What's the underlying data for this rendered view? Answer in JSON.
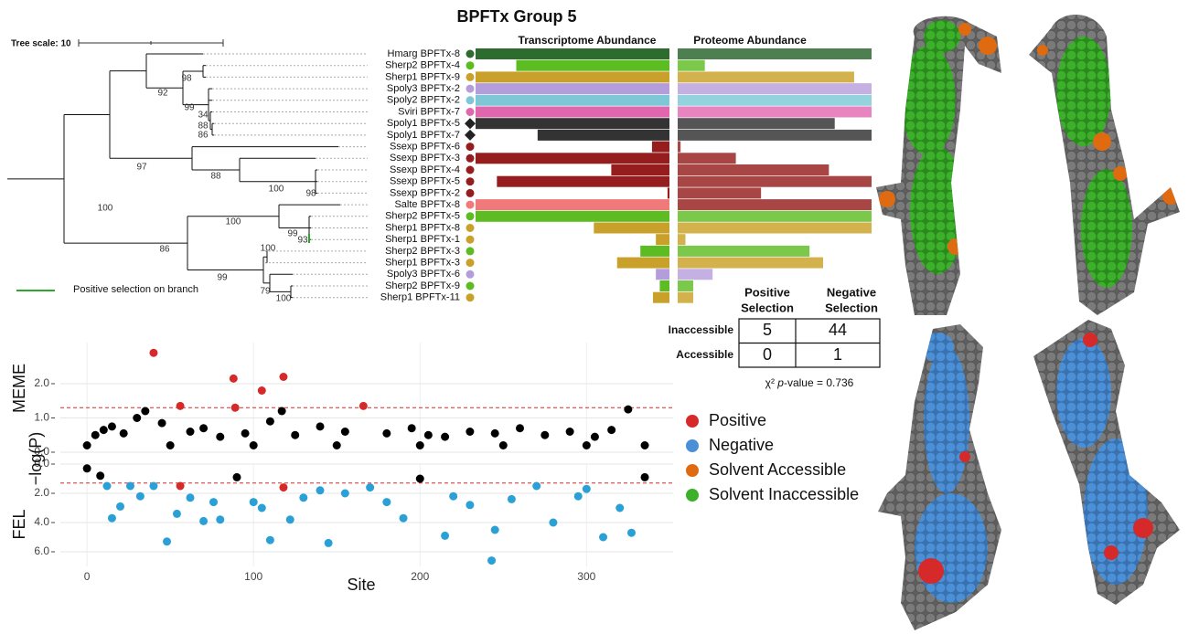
{
  "title": "BPFTx Group 5",
  "tree": {
    "scale_label": "Tree scale: 10",
    "legend": "Positive selection on branch",
    "taxa": [
      {
        "label": "Hmarg BPFTx-8",
        "color": "#2e6b2f",
        "shape": "circle"
      },
      {
        "label": "Sherp2 BPFTx-4",
        "color": "#5cbc22",
        "shape": "circle"
      },
      {
        "label": "Sherp1 BPFTx-9",
        "color": "#c8a02a",
        "shape": "circle"
      },
      {
        "label": "Spoly3 BPFTx-2",
        "color": "#b49ddb",
        "shape": "circle"
      },
      {
        "label": "Spoly2 BPFTx-2",
        "color": "#7ec7d6",
        "shape": "circle"
      },
      {
        "label": "Sviri BPFTx-7",
        "color": "#e066ae",
        "shape": "circle"
      },
      {
        "label": "Spoly1 BPFTx-5",
        "color": "#222222",
        "shape": "diamond"
      },
      {
        "label": "Spoly1 BPFTx-7",
        "color": "#222222",
        "shape": "diamond"
      },
      {
        "label": "Ssexp BPFTx-6",
        "color": "#961d1d",
        "shape": "circle"
      },
      {
        "label": "Ssexp BPFTx-3",
        "color": "#961d1d",
        "shape": "circle"
      },
      {
        "label": "Ssexp BPFTx-4",
        "color": "#961d1d",
        "shape": "circle"
      },
      {
        "label": "Ssexp BPFTx-5",
        "color": "#961d1d",
        "shape": "circle"
      },
      {
        "label": "Ssexp BPFTx-2",
        "color": "#961d1d",
        "shape": "circle"
      },
      {
        "label": "Salte BPFTx-8",
        "color": "#f07a7a",
        "shape": "circle"
      },
      {
        "label": "Sherp2 BPFTx-5",
        "color": "#5cbc22",
        "shape": "circle"
      },
      {
        "label": "Sherp1 BPFTx-8",
        "color": "#c8a02a",
        "shape": "circle"
      },
      {
        "label": "Sherp1 BPFTx-1",
        "color": "#c8a02a",
        "shape": "circle"
      },
      {
        "label": "Sherp2 BPFTx-3",
        "color": "#5cbc22",
        "shape": "circle"
      },
      {
        "label": "Sherp1 BPFTx-3",
        "color": "#c8a02a",
        "shape": "circle"
      },
      {
        "label": "Spoly3 BPFTx-6",
        "color": "#b49ddb",
        "shape": "circle"
      },
      {
        "label": "Sherp2 BPFTx-9",
        "color": "#5cbc22",
        "shape": "circle"
      },
      {
        "label": "Sherp1 BPFTx-11",
        "color": "#c8a02a",
        "shape": "circle"
      }
    ],
    "bootstrap": [
      "98",
      "92",
      "99",
      "34",
      "88",
      "86",
      "97",
      "88",
      "100",
      "98",
      "100",
      "100",
      "99",
      "93",
      "86",
      "100",
      "99",
      "79",
      "100"
    ]
  },
  "chart_data": [
    {
      "type": "bar",
      "direction": "left",
      "title": "Transcriptome Abundance",
      "values": [
        100,
        79,
        100,
        100,
        100,
        100,
        100,
        68,
        9,
        100,
        30,
        89,
        1,
        100,
        100,
        39,
        7,
        15,
        27,
        7,
        5,
        8.5
      ],
      "colors": [
        "#2e6b2f",
        "#5cbc22",
        "#c8a02a",
        "#b49ddb",
        "#7ec7d6",
        "#e066ae",
        "#333333",
        "#333333",
        "#961d1d",
        "#961d1d",
        "#961d1d",
        "#961d1d",
        "#961d1d",
        "#f07a7a",
        "#5cbc22",
        "#c8a02a",
        "#c8a02a",
        "#5cbc22",
        "#c8a02a",
        "#b49ddb",
        "#5cbc22",
        "#c8a02a"
      ]
    },
    {
      "type": "bar",
      "direction": "right",
      "title": "Proteome Abundance",
      "values": [
        100,
        14,
        91,
        100,
        100,
        100,
        81,
        100,
        1.5,
        30,
        78,
        100,
        43,
        100,
        100,
        100,
        4,
        68,
        75,
        18,
        8,
        8
      ],
      "colors": [
        "#4d7f50",
        "#7cc84a",
        "#d3b24d",
        "#c4b0e3",
        "#94d2de",
        "#e885c0",
        "#555555",
        "#555555",
        "#a84545",
        "#a84545",
        "#a84545",
        "#a84545",
        "#a84545",
        "#a84545",
        "#7cc84a",
        "#d3b24d",
        "#d3b24d",
        "#7cc84a",
        "#d3b24d",
        "#c4b0e3",
        "#7cc84a",
        "#d3b24d"
      ]
    },
    {
      "type": "scatter",
      "x_label": "Site",
      "y_label": "−log(P)",
      "grid": true,
      "xlim": [
        -16,
        352
      ],
      "xticks": [
        0,
        100,
        200,
        300
      ],
      "panels": [
        {
          "label": "MEME",
          "inverted": false,
          "threshold": 1.3,
          "ylim": [
            0,
            3.2
          ],
          "yticks": [
            {
              "value": 0,
              "label": "0.0"
            },
            {
              "value": 1,
              "label": "1.0"
            },
            {
              "value": 2,
              "label": "2.0"
            }
          ],
          "x": [
            0,
            5,
            10,
            15,
            22,
            30,
            35,
            40,
            45,
            50,
            56,
            62,
            70,
            80,
            88,
            89,
            95,
            100,
            105,
            110,
            117,
            118,
            125,
            140,
            150,
            155,
            166,
            180,
            195,
            200,
            205,
            215,
            230,
            245,
            250,
            260,
            275,
            290,
            300,
            305,
            315,
            325,
            335
          ],
          "values": [
            0.2,
            0.5,
            0.65,
            0.75,
            0.55,
            1.0,
            1.2,
            2.9,
            0.85,
            0.2,
            1.35,
            0.6,
            0.7,
            0.45,
            2.15,
            1.3,
            0.55,
            0.2,
            1.8,
            0.9,
            1.2,
            2.2,
            0.5,
            0.75,
            0.2,
            0.6,
            1.35,
            0.55,
            0.7,
            0.2,
            0.5,
            0.45,
            0.6,
            0.55,
            0.2,
            0.7,
            0.5,
            0.6,
            0.2,
            0.45,
            0.65,
            1.25,
            0.2
          ],
          "colors": [
            "#000000",
            "#000000",
            "#000000",
            "#000000",
            "#000000",
            "#000000",
            "#000000",
            "#d62a2a",
            "#000000",
            "#000000",
            "#d62a2a",
            "#000000",
            "#000000",
            "#000000",
            "#d62a2a",
            "#d62a2a",
            "#000000",
            "#000000",
            "#d62a2a",
            "#000000",
            "#000000",
            "#d62a2a",
            "#000000",
            "#000000",
            "#000000",
            "#000000",
            "#d62a2a",
            "#000000",
            "#000000",
            "#000000",
            "#000000",
            "#000000",
            "#000000",
            "#000000",
            "#000000",
            "#000000",
            "#000000",
            "#000000",
            "#000000",
            "#000000",
            "#000000",
            "#000000",
            "#000000"
          ]
        },
        {
          "label": "FEL",
          "inverted": true,
          "threshold": 1.3,
          "ylim": [
            0,
            7
          ],
          "yticks": [
            {
              "value": 0,
              "label": "0.0"
            },
            {
              "value": 2,
              "label": "2.0"
            },
            {
              "value": 4,
              "label": "4.0"
            },
            {
              "value": 6,
              "label": "6.0"
            }
          ],
          "x": [
            0,
            8,
            12,
            15,
            20,
            26,
            32,
            40,
            48,
            54,
            56,
            62,
            70,
            76,
            80,
            90,
            100,
            105,
            110,
            118,
            122,
            130,
            140,
            145,
            155,
            170,
            180,
            190,
            200,
            215,
            220,
            230,
            243,
            245,
            255,
            270,
            280,
            295,
            300,
            310,
            320,
            327,
            335
          ],
          "values": [
            0.3,
            0.8,
            1.5,
            3.7,
            2.9,
            1.5,
            2.2,
            1.5,
            5.3,
            3.4,
            1.5,
            2.3,
            3.9,
            2.6,
            3.8,
            0.9,
            2.6,
            3.0,
            5.2,
            1.6,
            3.8,
            2.3,
            1.8,
            5.4,
            2.0,
            1.6,
            2.6,
            3.7,
            1.0,
            4.9,
            2.2,
            2.8,
            6.6,
            4.5,
            2.4,
            1.5,
            4.0,
            2.2,
            1.7,
            5.0,
            3.0,
            4.7,
            0.9
          ],
          "colors": [
            "#000000",
            "#000000",
            "#2aa0d6",
            "#2aa0d6",
            "#2aa0d6",
            "#2aa0d6",
            "#2aa0d6",
            "#2aa0d6",
            "#2aa0d6",
            "#2aa0d6",
            "#d62a2a",
            "#2aa0d6",
            "#2aa0d6",
            "#2aa0d6",
            "#2aa0d6",
            "#000000",
            "#2aa0d6",
            "#2aa0d6",
            "#2aa0d6",
            "#d62a2a",
            "#2aa0d6",
            "#2aa0d6",
            "#2aa0d6",
            "#2aa0d6",
            "#2aa0d6",
            "#2aa0d6",
            "#2aa0d6",
            "#2aa0d6",
            "#000000",
            "#2aa0d6",
            "#2aa0d6",
            "#2aa0d6",
            "#2aa0d6",
            "#2aa0d6",
            "#2aa0d6",
            "#2aa0d6",
            "#2aa0d6",
            "#2aa0d6",
            "#2aa0d6",
            "#2aa0d6",
            "#2aa0d6",
            "#2aa0d6",
            "#000000"
          ]
        }
      ]
    }
  ],
  "table": {
    "column_headers": [
      [
        "Positive",
        "Selection"
      ],
      [
        "Negative",
        "Selection"
      ]
    ],
    "rows": [
      {
        "label": "Inaccessible",
        "cells": [
          5,
          44
        ]
      },
      {
        "label": "Accessible",
        "cells": [
          0,
          1
        ]
      }
    ],
    "caption": {
      "prefix": "χ² ",
      "italic": "p",
      "suffix": "-value = 0.736"
    }
  },
  "legend": [
    {
      "label": "Positive",
      "color": "#d62a2a"
    },
    {
      "label": "Negative",
      "color": "#4b8fd6"
    },
    {
      "label": "Solvent Accessible",
      "color": "#e06a10"
    },
    {
      "label": "Solvent Inaccessible",
      "color": "#3cb02a"
    }
  ]
}
